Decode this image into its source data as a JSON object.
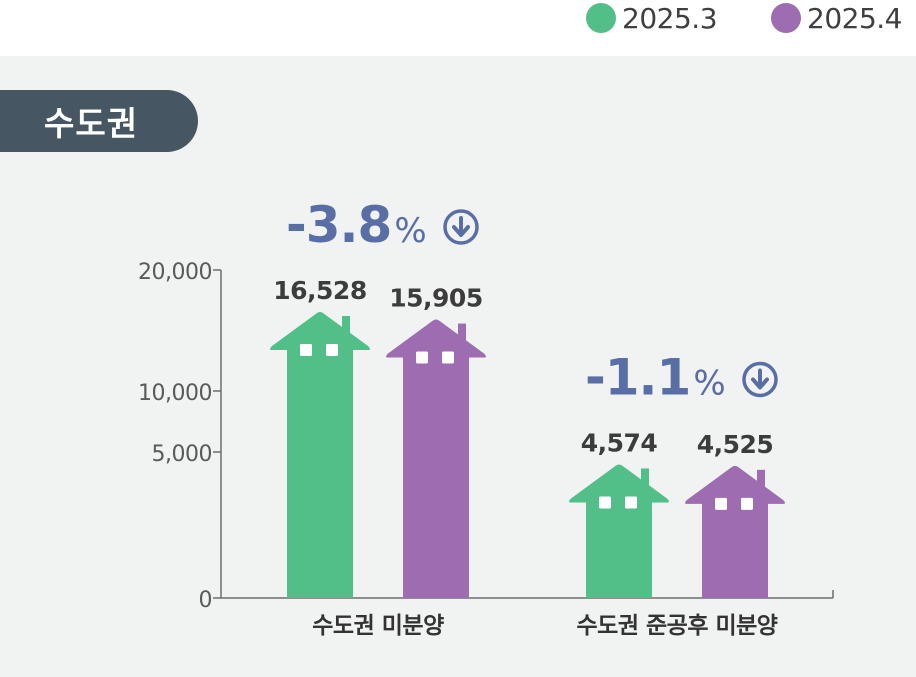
{
  "legend": [
    {
      "label": "2025.3",
      "color": "#52bf88"
    },
    {
      "label": "2025.4",
      "color": "#9e6cb0"
    }
  ],
  "region_label": "수도권",
  "chart_data": {
    "type": "bar",
    "categories": [
      "수도권 미분양",
      "수도권 준공후 미분양"
    ],
    "series": [
      {
        "name": "2025.3",
        "values": [
          16528,
          4574
        ],
        "color": "#52bf88"
      },
      {
        "name": "2025.4",
        "values": [
          15905,
          4525
        ],
        "color": "#9e6cb0"
      }
    ],
    "data_labels": [
      [
        "16,528",
        "15,905"
      ],
      [
        "4,574",
        "4,525"
      ]
    ],
    "change": [
      {
        "value": "-3.8",
        "unit": "%",
        "direction": "down"
      },
      {
        "value": "-1.1",
        "unit": "%",
        "direction": "down"
      }
    ],
    "y_ticks": [
      {
        "value": 0,
        "label": "0"
      },
      {
        "value": 5000,
        "label": "5,000"
      },
      {
        "value": 10000,
        "label": "10,000"
      },
      {
        "value": 20000,
        "label": "20,000"
      }
    ],
    "ylim": [
      0,
      20000
    ],
    "grid": false,
    "legend_position": "top-right",
    "accent_color": "#5a6ea6"
  }
}
